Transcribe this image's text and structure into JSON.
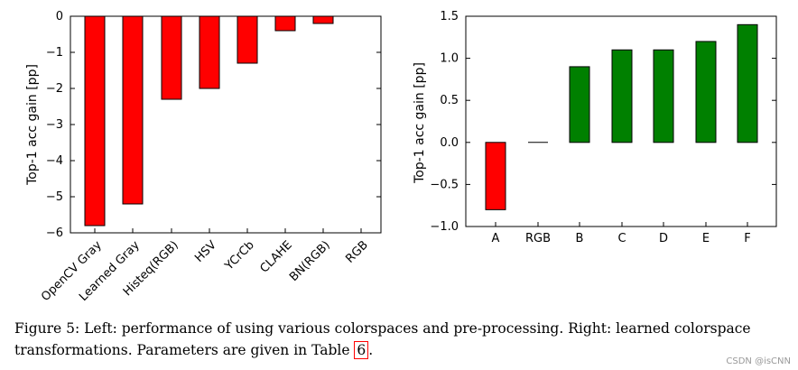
{
  "chart_data": [
    {
      "type": "bar",
      "title": "",
      "xlabel": "",
      "ylabel": "Top-1 acc gain [pp]",
      "categories": [
        "OpenCV Gray",
        "Learned Gray",
        "Histeq(RGB)",
        "HSV",
        "YCrCb",
        "CLAHE",
        "BN(RGB)",
        "RGB"
      ],
      "values": [
        -5.8,
        -5.2,
        -2.3,
        -2.0,
        -1.3,
        -0.4,
        -0.2,
        0.0
      ],
      "ylim": [
        -6,
        0
      ],
      "yticks": [
        "0",
        "−1",
        "−2",
        "−3",
        "−4",
        "−5",
        "−6"
      ],
      "bar_colors": [
        "#ff0000",
        "#ff0000",
        "#ff0000",
        "#ff0000",
        "#ff0000",
        "#ff0000",
        "#ff0000",
        "#ff0000"
      ],
      "grid": false
    },
    {
      "type": "bar",
      "title": "",
      "xlabel": "",
      "ylabel": "Top-1 acc gain [pp]",
      "categories": [
        "A",
        "RGB",
        "B",
        "C",
        "D",
        "E",
        "F"
      ],
      "values": [
        -0.8,
        0.0,
        0.9,
        1.1,
        1.1,
        1.2,
        1.4
      ],
      "ylim": [
        -1.0,
        1.5
      ],
      "yticks": [
        "1.5",
        "1.0",
        "0.5",
        "0.0",
        "−0.5",
        "−1.0"
      ],
      "bar_colors": [
        "#ff0000",
        "#000000",
        "#008000",
        "#008000",
        "#008000",
        "#008000",
        "#008000"
      ],
      "grid": false
    }
  ],
  "caption": {
    "text": "Figure 5: Left: performance of using various colorspaces and pre-processing. Right: learned colorspace transformations. Parameters are given in Table ",
    "ref": "6",
    "end": "."
  },
  "watermark": "CSDN @isCNN"
}
